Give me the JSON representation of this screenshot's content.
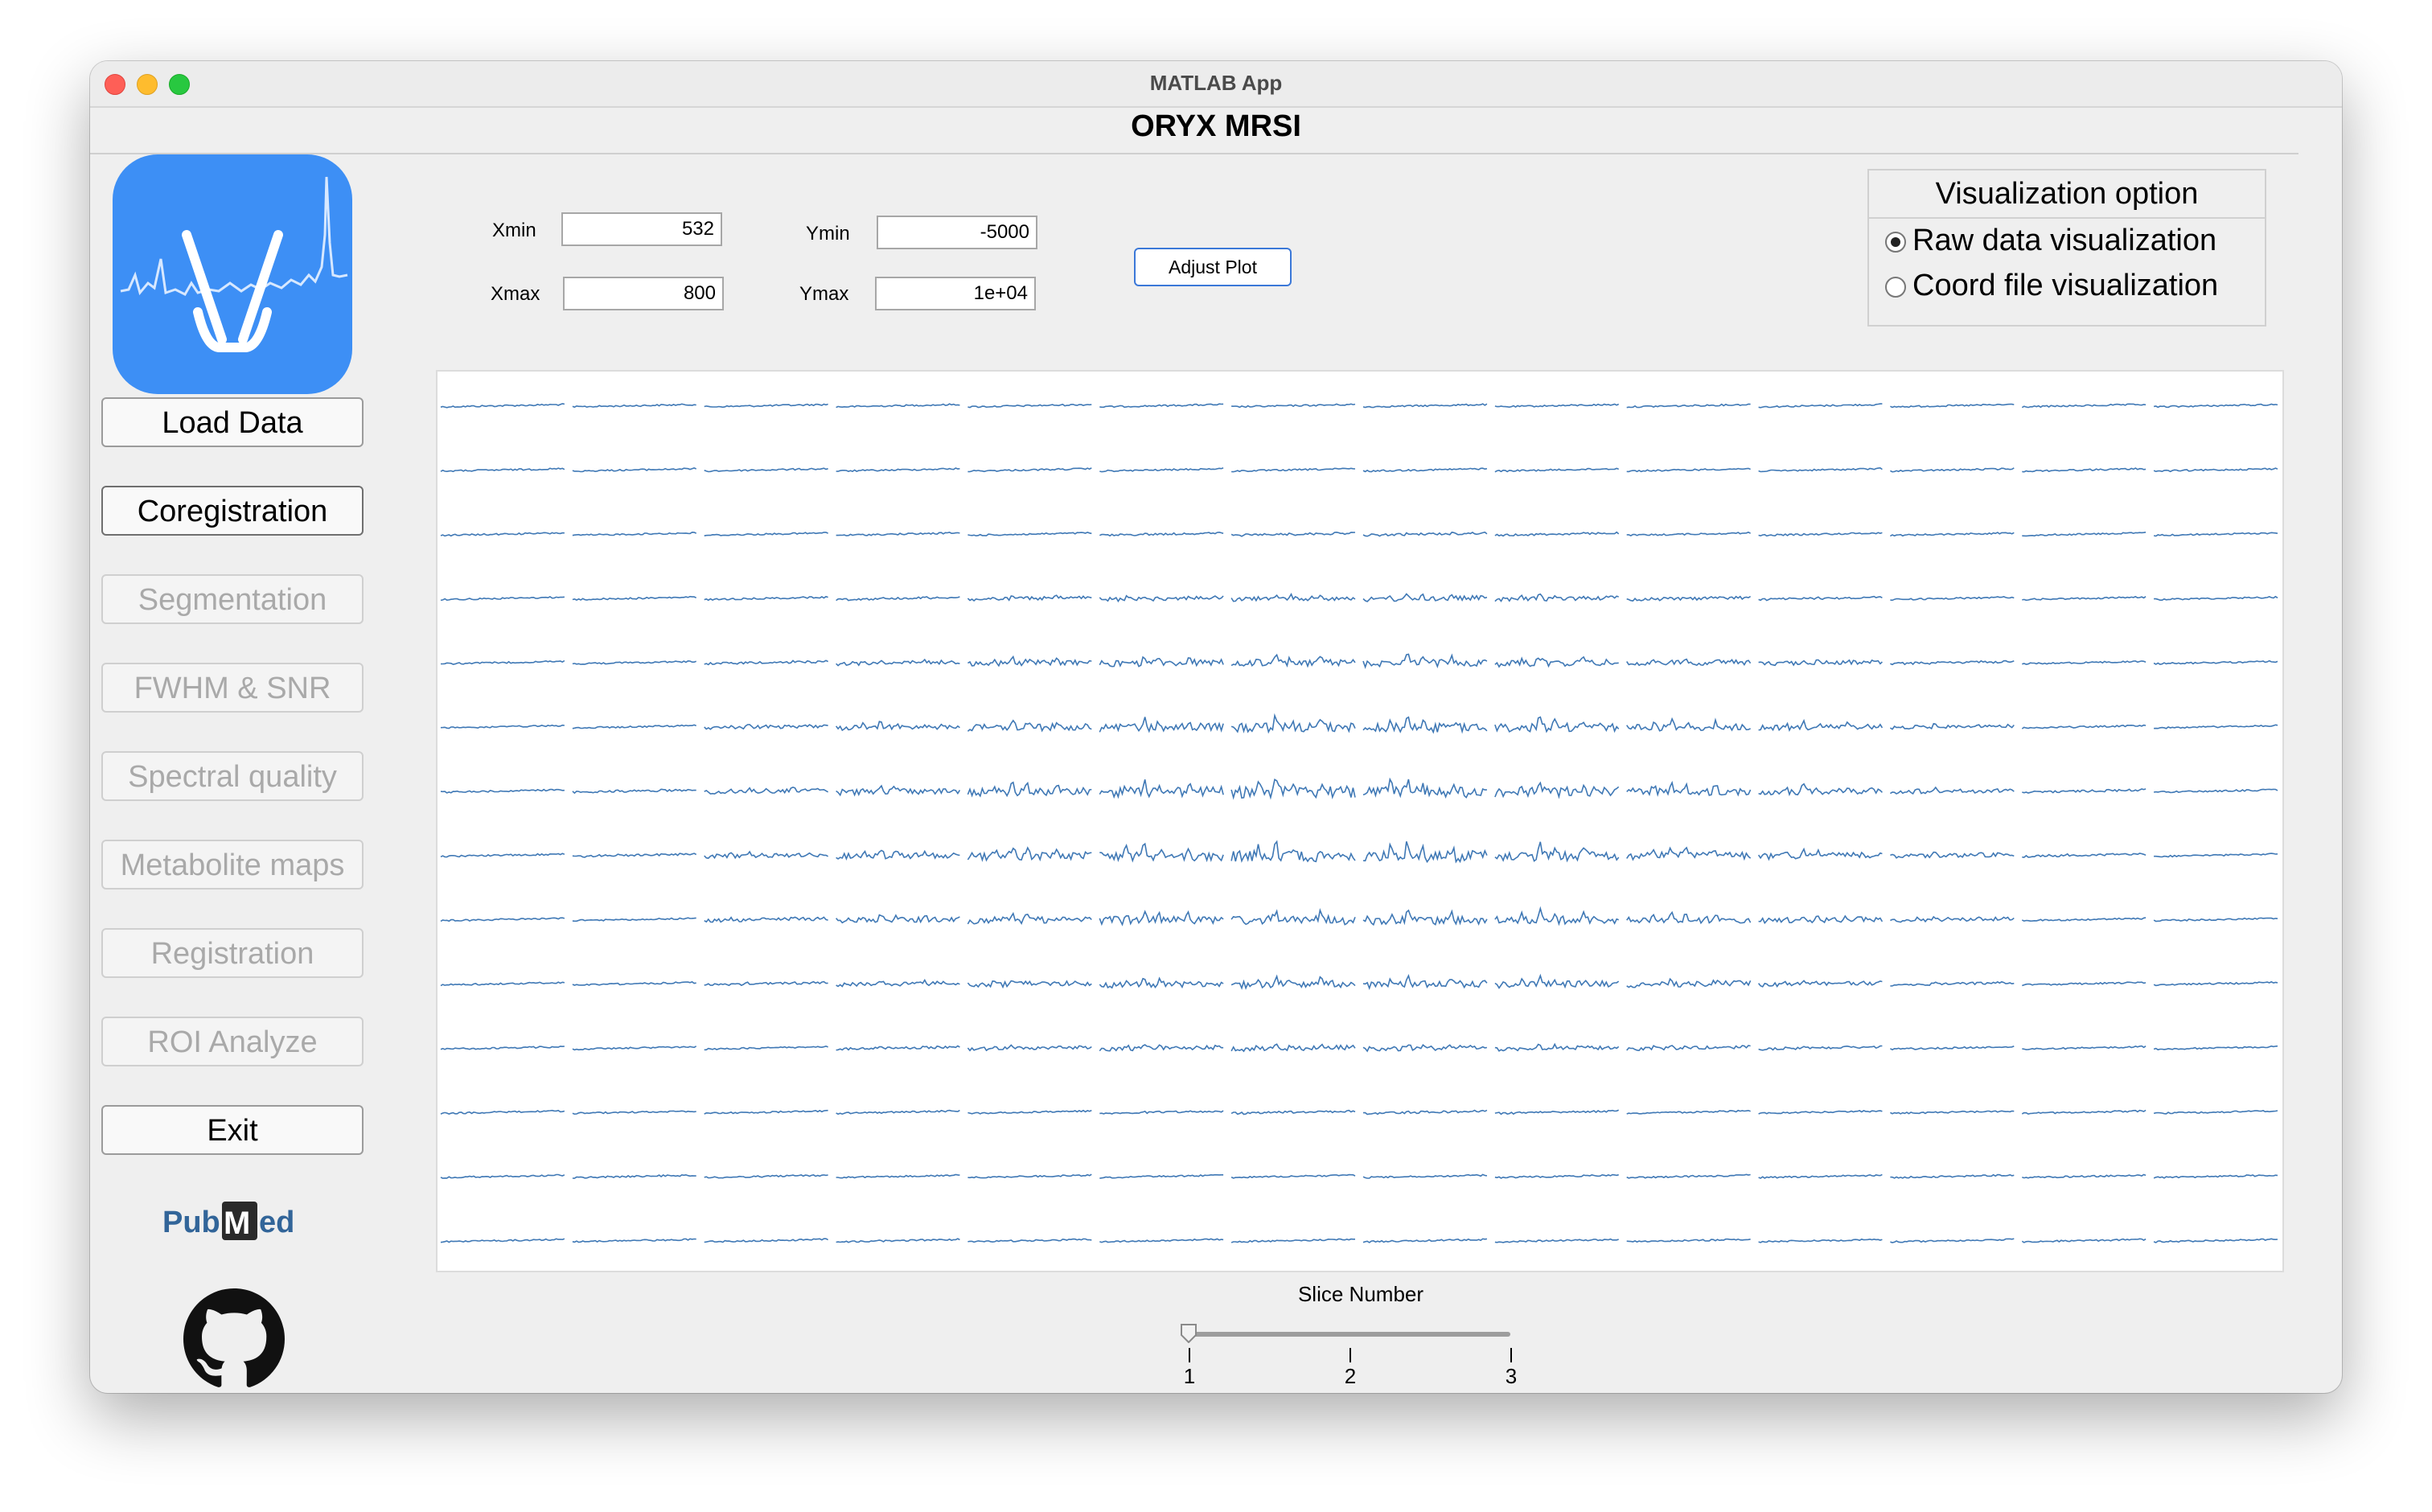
{
  "window": {
    "title": "MATLAB App"
  },
  "app": {
    "title": "ORYX MRSI"
  },
  "sidebar": {
    "buttons": [
      {
        "label": "Load Data",
        "enabled": true
      },
      {
        "label": "Coregistration",
        "enabled": true
      },
      {
        "label": "Segmentation",
        "enabled": false
      },
      {
        "label": "FWHM & SNR",
        "enabled": false
      },
      {
        "label": "Spectral quality",
        "enabled": false
      },
      {
        "label": "Metabolite maps",
        "enabled": false
      },
      {
        "label": "Registration",
        "enabled": false
      },
      {
        "label": "ROI Analyze",
        "enabled": false
      },
      {
        "label": "Exit",
        "enabled": true
      }
    ],
    "pubmed_logo": "PubMed"
  },
  "controls": {
    "xmin_label": "Xmin",
    "xmin_value": "532",
    "xmax_label": "Xmax",
    "xmax_value": "800",
    "ymin_label": "Ymin",
    "ymin_value": "-5000",
    "ymax_label": "Ymax",
    "ymax_value": "1e+04",
    "adjust_button": "Adjust Plot"
  },
  "visualization": {
    "title": "Visualization option",
    "options": [
      {
        "label": "Raw data visualization",
        "selected": true
      },
      {
        "label": "Coord file visualization",
        "selected": false
      }
    ]
  },
  "spectra_grid": {
    "rows": 14,
    "cols": 14,
    "line_color": "#3f78b5"
  },
  "slice": {
    "label": "Slice Number",
    "ticks": [
      "1",
      "2",
      "3"
    ],
    "value": 1,
    "min": 1,
    "max": 3
  },
  "colors": {
    "accent": "#3b78d8",
    "logo_bg": "#3d8ff5"
  }
}
